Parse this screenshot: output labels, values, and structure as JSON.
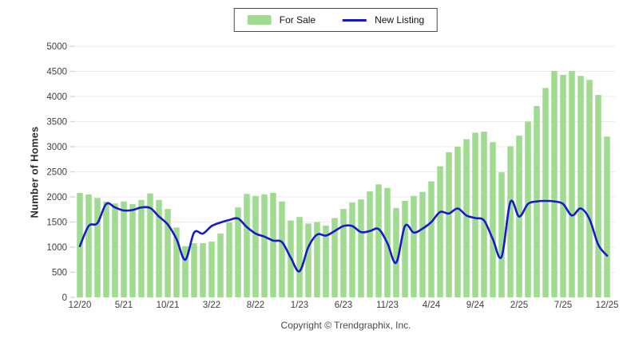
{
  "legend": {
    "for_sale_label": "For Sale",
    "new_listing_label": "New Listing"
  },
  "axes": {
    "y_title": "Number of Homes",
    "y_ticks": [
      0,
      500,
      1000,
      1500,
      2000,
      2500,
      3000,
      3500,
      4000,
      4500,
      5000
    ],
    "x_tick_labels": [
      "12/20",
      "5/21",
      "10/21",
      "3/22",
      "8/22",
      "1/23",
      "6/23",
      "11/23",
      "4/24",
      "9/24",
      "2/25",
      "7/25",
      "12/25"
    ]
  },
  "footer": {
    "copyright": "Copyright © Trendgraphix, Inc."
  },
  "colors": {
    "bar": "#9fdc8f",
    "line": "#1818cc",
    "grid": "#ebebeb",
    "tick": "#d8d8d8",
    "axis_text": "#3f3f3f",
    "legend_border": "#414e5a"
  },
  "chart_data": {
    "type": "bar+line combo",
    "title": "",
    "xlabel": "",
    "ylabel": "Number of Homes",
    "ylim": [
      0,
      5000
    ],
    "y_tick_step": 500,
    "grid": "horizontal",
    "legend_position": "top-center",
    "x_visible_tick_every": 5,
    "categories": [
      "12/20",
      "1/21",
      "2/21",
      "3/21",
      "4/21",
      "5/21",
      "6/21",
      "7/21",
      "8/21",
      "9/21",
      "10/21",
      "11/21",
      "12/21",
      "1/22",
      "2/22",
      "3/22",
      "4/22",
      "5/22",
      "6/22",
      "7/22",
      "8/22",
      "9/22",
      "10/22",
      "11/22",
      "12/22",
      "1/23",
      "2/23",
      "3/23",
      "4/23",
      "5/23",
      "6/23",
      "7/23",
      "8/23",
      "9/23",
      "10/23",
      "11/23",
      "12/23",
      "1/24",
      "2/24",
      "3/24",
      "4/24",
      "5/24",
      "6/24",
      "7/24",
      "8/24",
      "9/24",
      "10/24",
      "11/24",
      "12/24",
      "1/25",
      "2/25",
      "3/25",
      "4/25",
      "5/25",
      "6/25",
      "7/25",
      "8/25",
      "9/25",
      "10/25",
      "11/25",
      "12/25"
    ],
    "series": [
      {
        "name": "For Sale",
        "type": "bar",
        "values": [
          2080,
          2050,
          1980,
          1910,
          1870,
          1910,
          1860,
          1940,
          2070,
          1940,
          1760,
          1390,
          1020,
          1080,
          1080,
          1110,
          1270,
          1490,
          1790,
          2060,
          2020,
          2050,
          2080,
          1910,
          1530,
          1600,
          1470,
          1500,
          1430,
          1580,
          1760,
          1890,
          1950,
          2110,
          2250,
          2180,
          1780,
          1920,
          2020,
          2100,
          2310,
          2610,
          2890,
          3000,
          3150,
          3280,
          3300,
          3090,
          2490,
          3010,
          3220,
          3500,
          3810,
          4170,
          4510,
          4430,
          4510,
          4410,
          4330,
          4030,
          3200
        ]
      },
      {
        "name": "New Listing",
        "type": "line",
        "values": [
          1020,
          1420,
          1480,
          1860,
          1790,
          1730,
          1740,
          1790,
          1780,
          1610,
          1450,
          1160,
          750,
          1290,
          1270,
          1420,
          1490,
          1540,
          1570,
          1400,
          1270,
          1210,
          1130,
          1100,
          790,
          520,
          1000,
          1250,
          1230,
          1320,
          1420,
          1420,
          1300,
          1320,
          1360,
          1080,
          690,
          1420,
          1290,
          1370,
          1500,
          1700,
          1670,
          1770,
          1630,
          1580,
          1530,
          1160,
          810,
          1900,
          1610,
          1860,
          1910,
          1920,
          1910,
          1860,
          1630,
          1770,
          1560,
          1050,
          830
        ]
      }
    ]
  }
}
